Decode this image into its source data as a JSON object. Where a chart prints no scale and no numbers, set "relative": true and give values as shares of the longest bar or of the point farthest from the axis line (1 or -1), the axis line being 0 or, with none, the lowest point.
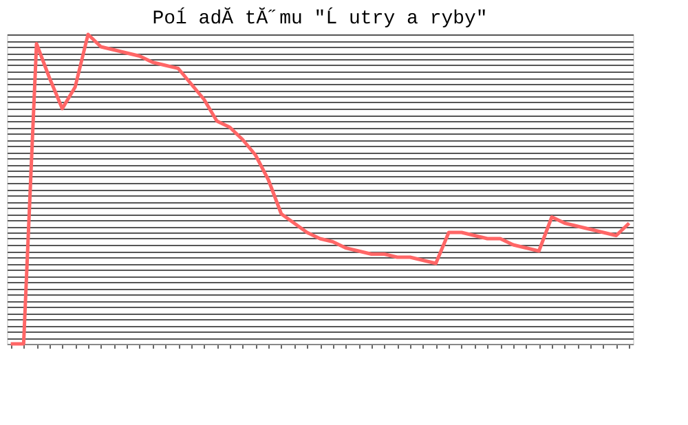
{
  "chart_data": {
    "type": "line",
    "title": "Poĺ adĂ­ tĂ˝mu \"Ĺ utry a ryby\"",
    "relative": true,
    "grid": "y",
    "tick_labels": false,
    "marker": "none",
    "line_style": "solid",
    "categories": [
      null,
      null,
      null,
      null,
      null,
      null,
      null,
      null,
      null,
      null,
      null,
      null,
      null,
      null,
      null,
      null,
      null,
      null,
      null,
      null,
      null,
      null,
      null,
      null,
      null,
      null,
      null,
      null,
      null,
      null,
      null,
      null,
      null,
      null,
      null,
      null,
      null,
      null,
      null,
      null,
      null,
      null,
      null,
      null,
      null,
      null,
      null,
      null,
      null
    ],
    "series": [
      {
        "color": "#ff6666",
        "values": [
          0,
          0,
          0.97,
          0.86,
          0.76,
          0.83,
          1,
          0.96,
          0.95,
          0.94,
          0.93,
          0.91,
          0.9,
          0.89,
          0.84,
          0.79,
          0.72,
          0.7,
          0.66,
          0.61,
          0.53,
          0.42,
          0.39,
          0.36,
          0.34,
          0.33,
          0.31,
          0.3,
          0.29,
          0.29,
          0.28,
          0.28,
          0.27,
          0.26,
          0.36,
          0.36,
          0.35,
          0.34,
          0.34,
          0.32,
          0.31,
          0.3,
          0.41,
          0.39,
          0.38,
          0.37,
          0.36,
          0.35,
          0.39
        ]
      }
    ]
  }
}
